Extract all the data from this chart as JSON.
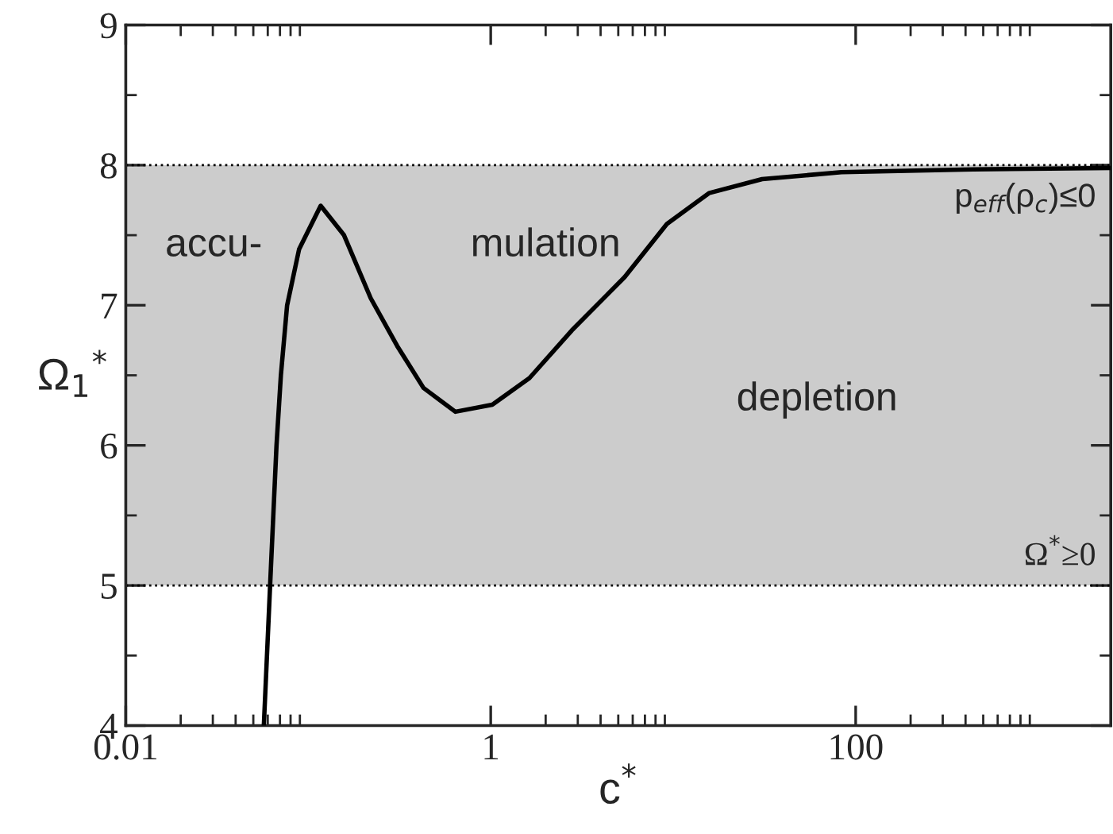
{
  "chart_data": {
    "type": "line",
    "xlabel": "c$^{*}$",
    "ylabel": "Ω$_{1}$$^{*}$",
    "x": [
      0.0571,
      0.0618,
      0.067,
      0.0708,
      0.0766,
      0.0891,
      0.117,
      0.157,
      0.22,
      0.307,
      0.428,
      0.64,
      1.02,
      1.63,
      2.78,
      5.41,
      9.23,
      15.7,
      30.7,
      83.6,
      440,
      2500
    ],
    "series": [
      {
        "color": "#000000",
        "values": [
          4,
          5,
          6,
          6.5,
          7,
          7.4,
          7.71,
          7.5,
          7.05,
          6.71,
          6.41,
          6.24,
          6.29,
          6.48,
          6.82,
          7.2,
          7.58,
          7.8,
          7.9,
          7.95,
          7.97,
          7.98
        ]
      }
    ],
    "log": "x",
    "xlim": [
      0.01,
      2500
    ],
    "xticks": [
      0.01,
      1,
      100
    ],
    "ylim": [
      4,
      9
    ],
    "yticks": [
      4,
      5,
      6,
      7,
      8,
      9
    ],
    "bands": [
      {
        "axis": "y",
        "from": 5,
        "to": 8,
        "color": "#cccccc"
      }
    ],
    "ref_lines": [
      {
        "axis": "y",
        "value": 8,
        "label": "p$_{eff}$(ρ$_{c}$)≤0",
        "line_style": "dotted"
      },
      {
        "axis": "y",
        "value": 5,
        "label": "Ω$^{*}$≥0",
        "line_style": "dotted"
      }
    ],
    "annotations": [
      "accu-",
      "mulation",
      "depletion"
    ],
    "grid": false,
    "legend": false,
    "marker": "none",
    "line_style": "solid"
  }
}
